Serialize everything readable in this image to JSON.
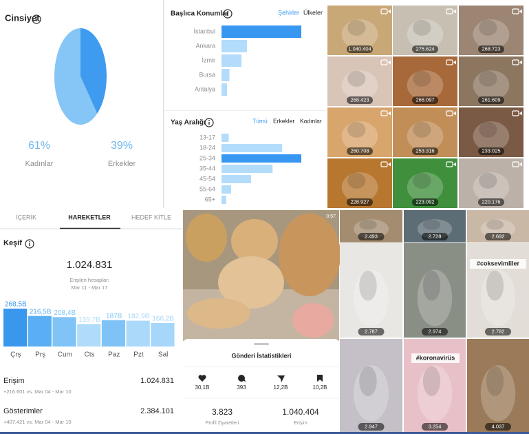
{
  "gender": {
    "type": "pie",
    "title": "Cinsiyet",
    "categories": [
      "Kadınlar",
      "Erkekler"
    ],
    "values": [
      61,
      39
    ],
    "value_labels": [
      "61%",
      "39%"
    ],
    "colors": [
      "#85c6f7",
      "#3e9bef"
    ]
  },
  "locations": {
    "type": "bar",
    "title": "Başlıca Konumlar",
    "tabs": [
      "Şehirler",
      "Ülkeler"
    ],
    "categories": [
      "İstanbul",
      "Ankara",
      "İzmir",
      "Bursa",
      "Antalya"
    ],
    "values": [
      100,
      32,
      25,
      10,
      7
    ],
    "colors": [
      "#3897f0",
      "#b3dcfb"
    ]
  },
  "age": {
    "type": "bar",
    "title": "Yaş Aralığı",
    "tabs": [
      "Tümü",
      "Erkekler",
      "Kadınlar"
    ],
    "categories": [
      "13-17",
      "18-24",
      "25-34",
      "35-44",
      "45-54",
      "55-64",
      "65+"
    ],
    "values": [
      9,
      76,
      100,
      64,
      37,
      12,
      6
    ],
    "colors": [
      "#3897f0",
      "#b3dcfb"
    ]
  },
  "top_posts": {
    "views": [
      "1.040.404",
      "275.624",
      "268.723",
      "268.423",
      "266.097",
      "261.609",
      "260.708",
      "253.316",
      "233.025",
      "228.927",
      "223.092",
      "220.176"
    ]
  },
  "activity": {
    "tabs": [
      "İÇERİK",
      "HAREKETLER",
      "HEDEF KİTLE"
    ],
    "section": "Keşif",
    "total": "1.024.831",
    "reached_label": "Erişilen hesaplar:",
    "date_range": "Mar 11 - Mar 17",
    "chart": {
      "type": "bar",
      "categories": [
        "Çrş",
        "Prş",
        "Cum",
        "Cts",
        "Paz",
        "Pzt",
        "Sal"
      ],
      "values": [
        268.5,
        216.5,
        208.4,
        159.7,
        187,
        182.9,
        166.2
      ],
      "value_labels": [
        "268,5B",
        "216,5B",
        "208,4B",
        "159,7B",
        "187B",
        "182,9B",
        "166,2B"
      ],
      "colors": [
        "#3a97ee",
        "#5aaef3",
        "#80c4f7",
        "#b0dcfa",
        "#7fc3f6",
        "#abd9f9",
        "#a6d6f9"
      ]
    },
    "rows": [
      {
        "label": "Erişim",
        "value": "1.024.831",
        "change": "+216.601 vs. Mar 04 - Mar 10"
      },
      {
        "label": "Gösterimler",
        "value": "2.384.101",
        "change": "+407.421 vs. Mar 04 - Mar 10"
      }
    ]
  },
  "video": {
    "duration": "0:57",
    "sheet_title": "Gönderi İstatistikleri",
    "stats": [
      "30,1B",
      "393",
      "12,2B",
      "10,2B"
    ],
    "summary": [
      {
        "value": "3.823",
        "label": "Profil Ziyaretleri"
      },
      {
        "value": "1.040.404",
        "label": "Erişim"
      }
    ]
  },
  "more_posts": {
    "views": [
      "2.493",
      "2.728",
      "2.692",
      "2.787",
      "2.974",
      "2.782",
      "2.947",
      "3.254",
      "4.037"
    ],
    "hashtags": [
      "#coksevimliler",
      "#koronavirüs"
    ]
  }
}
